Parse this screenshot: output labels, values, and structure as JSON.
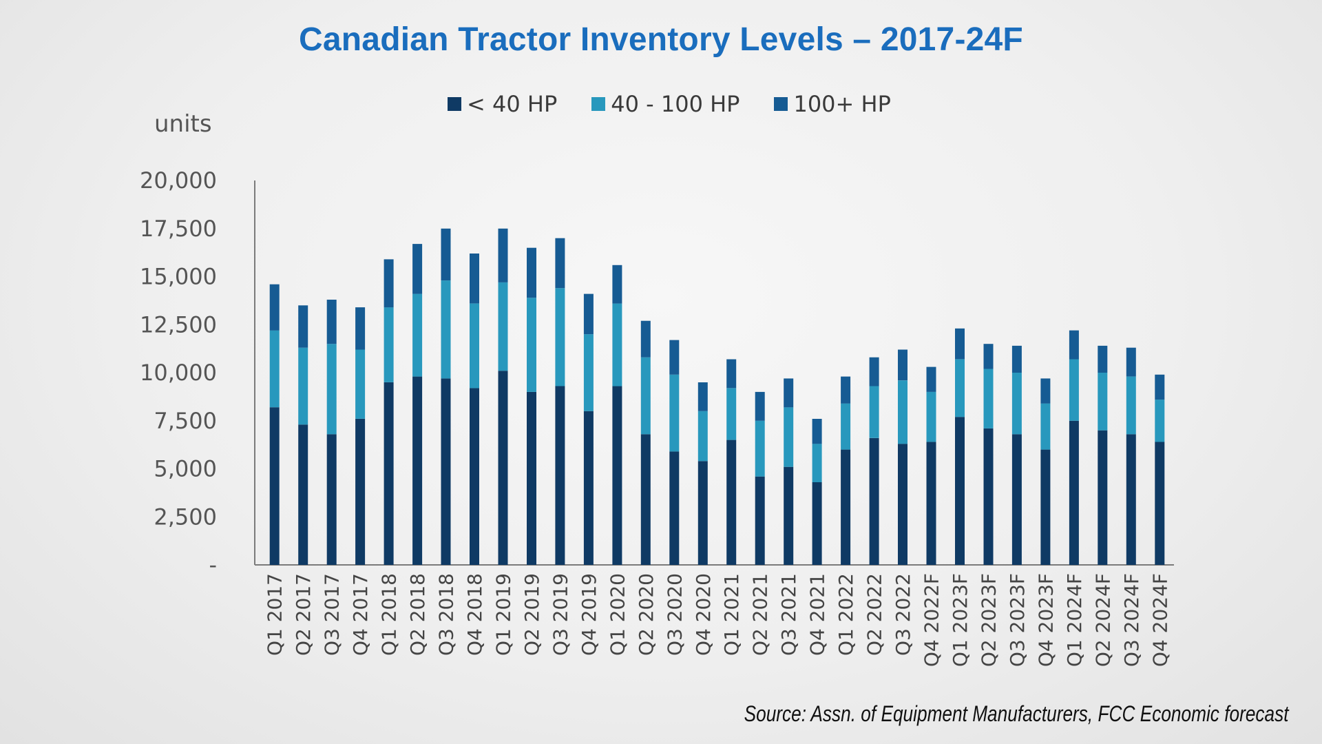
{
  "page": {
    "title": "Canadian Tractor Inventory Levels – 2017-24F",
    "source": "Source: Assn. of Equipment Manufacturers, FCC Economic forecast"
  },
  "colors": {
    "title": "#1a6dbd",
    "lt40": "#0f3a64",
    "mid": "#2898bd",
    "hp100": "#165b93"
  },
  "chart_data": {
    "type": "bar",
    "stacked": true,
    "title": "Canadian Tractor Inventory Levels – 2017-24F",
    "ylabel": "units",
    "xlabel": "",
    "ylim": [
      0,
      20000
    ],
    "yticks": [
      0,
      2500,
      5000,
      7500,
      10000,
      12500,
      15000,
      17500,
      20000
    ],
    "ytick_labels": [
      "-",
      "2,500",
      "5,000",
      "7,500",
      "10,000",
      "12,500",
      "15,000",
      "17,500",
      "20,000"
    ],
    "legend_position": "top",
    "grid": false,
    "categories": [
      "Q1 2017",
      "Q2 2017",
      "Q3 2017",
      "Q4 2017",
      "Q1 2018",
      "Q2 2018",
      "Q3 2018",
      "Q4 2018",
      "Q1 2019",
      "Q2 2019",
      "Q3 2019",
      "Q4 2019",
      "Q1 2020",
      "Q2 2020",
      "Q3 2020",
      "Q4 2020",
      "Q1 2021",
      "Q2 2021",
      "Q3 2021",
      "Q4 2021",
      "Q1 2022",
      "Q2 2022",
      "Q3 2022",
      "Q4 2022F",
      "Q1 2023F",
      "Q2 2023F",
      "Q3 2023F",
      "Q4 2023F",
      "Q1 2024F",
      "Q2 2024F",
      "Q3 2024F",
      "Q4 2024F"
    ],
    "series": [
      {
        "name": "< 40 HP",
        "color": "#0f3a64",
        "values": [
          8200,
          7300,
          6800,
          7600,
          9500,
          9800,
          9700,
          9200,
          10100,
          9000,
          9300,
          8000,
          9300,
          6800,
          5900,
          5400,
          6500,
          4600,
          5100,
          4300,
          6000,
          6600,
          6300,
          6400,
          7700,
          7100,
          6800,
          6000,
          7500,
          7000,
          6800,
          6400
        ]
      },
      {
        "name": "40 - 100 HP",
        "color": "#2898bd",
        "values": [
          4000,
          4000,
          4700,
          3600,
          3900,
          4300,
          5100,
          4400,
          4600,
          4900,
          5100,
          4000,
          4300,
          4000,
          4000,
          2600,
          2700,
          2900,
          3100,
          2000,
          2400,
          2700,
          3300,
          2600,
          3000,
          3100,
          3200,
          2400,
          3200,
          3000,
          3000,
          2200
        ]
      },
      {
        "name": "100+ HP",
        "color": "#165b93",
        "values": [
          2400,
          2200,
          2300,
          2200,
          2500,
          2600,
          2700,
          2600,
          2800,
          2600,
          2600,
          2100,
          2000,
          1900,
          1800,
          1500,
          1500,
          1500,
          1500,
          1300,
          1400,
          1500,
          1600,
          1300,
          1600,
          1300,
          1400,
          1300,
          1500,
          1400,
          1500,
          1300
        ]
      }
    ]
  }
}
